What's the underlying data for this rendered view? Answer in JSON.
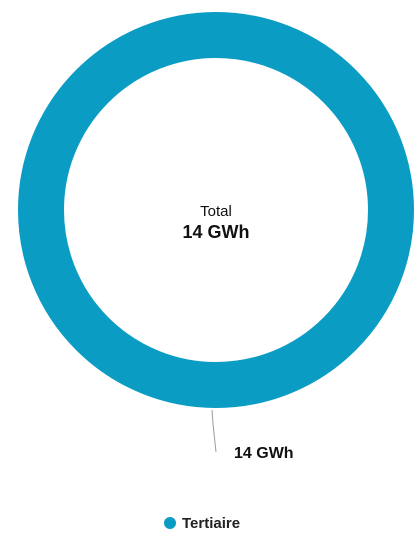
{
  "chart_data": {
    "type": "pie",
    "variant": "donut",
    "categories": [
      "Tertiaire"
    ],
    "values": [
      14
    ],
    "data_labels": [
      "14 GWh"
    ],
    "colors": [
      "#0b9cc4"
    ],
    "center": {
      "label": "Total",
      "value": "14 GWh"
    },
    "legend": {
      "position": "bottom",
      "entries": [
        "Tertiaire"
      ]
    }
  }
}
